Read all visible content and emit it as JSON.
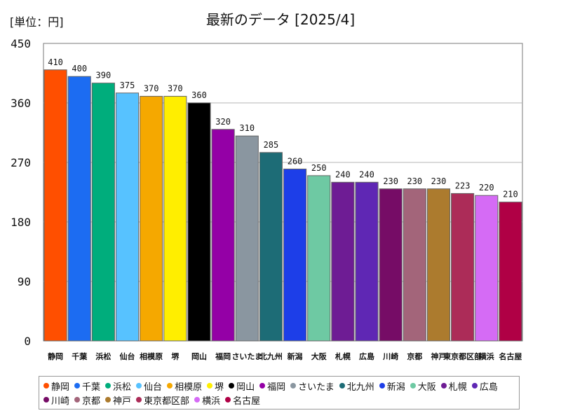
{
  "unit_label": "[単位：円]",
  "chart_data": {
    "type": "bar",
    "title": "最新のデータ [2025/4]",
    "xlabel": "",
    "ylabel": "",
    "ylim": [
      0,
      450
    ],
    "yticks": [
      0,
      90,
      180,
      270,
      360,
      450
    ],
    "grid": true,
    "legend_position": "bottom",
    "categories": [
      "静岡",
      "千葉",
      "浜松",
      "仙台",
      "相模原",
      "堺",
      "岡山",
      "福岡",
      "さいたま",
      "北九州",
      "新潟",
      "大阪",
      "札幌",
      "広島",
      "川崎",
      "京都",
      "神戸",
      "東京都区部",
      "横浜",
      "名古屋"
    ],
    "values": [
      410,
      400,
      390,
      375,
      370,
      370,
      360,
      320,
      310,
      285,
      260,
      250,
      240,
      240,
      230,
      230,
      230,
      223,
      220,
      210
    ],
    "colors": [
      "#ff4f00",
      "#1c6cf2",
      "#00ad7c",
      "#57c2ff",
      "#f5a800",
      "#ffee00",
      "#000000",
      "#9400a6",
      "#8a96a0",
      "#1d6c76",
      "#1d3ee8",
      "#6ec9a3",
      "#6e1c94",
      "#5f27b4",
      "#760c66",
      "#a3657a",
      "#ac7b2e",
      "#ac2c58",
      "#d56bf5",
      "#b00045"
    ]
  }
}
